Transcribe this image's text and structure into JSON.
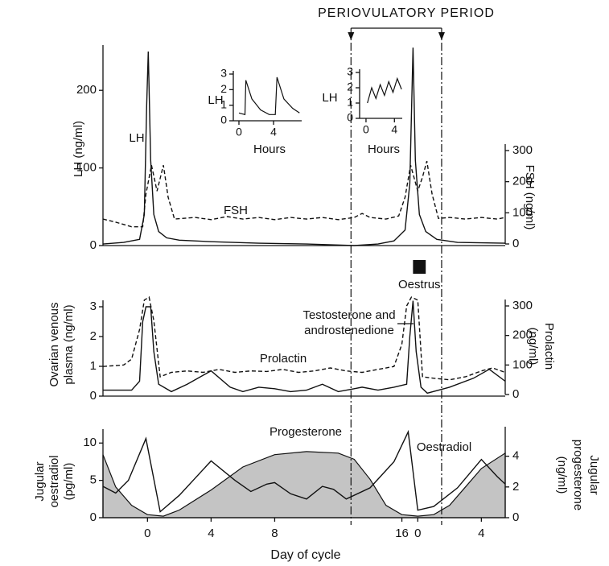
{
  "periovulatory": {
    "label": "PERIOVULATORY PERIOD",
    "range": [
      12.8,
      18.5
    ]
  },
  "chart_data": [
    {
      "type": "line",
      "ylabel": "LH (ng/ml)",
      "y2label": "FSH (ng/ml)",
      "xlim": [
        -2.8,
        22.5
      ],
      "ylim": [
        0,
        250
      ],
      "yticks": [
        0,
        100,
        200
      ],
      "y2lim": [
        0,
        300
      ],
      "y2ticks": [
        0,
        100,
        200,
        300
      ],
      "series": [
        {
          "name": "LH",
          "color": "#111111",
          "x": [
            -2.8,
            -1.5,
            -0.5,
            -0.2,
            -0.05,
            0.05,
            0.2,
            0.4,
            0.7,
            1.2,
            2,
            4,
            7,
            10,
            13,
            14.5,
            15.5,
            16.2,
            16.5,
            16.7,
            16.85,
            17.1,
            17.5,
            18.2,
            19.5,
            22.5
          ],
          "values": [
            2,
            4,
            8,
            40,
            180,
            250,
            110,
            40,
            18,
            10,
            7,
            5,
            3,
            2,
            0,
            2,
            6,
            20,
            80,
            255,
            110,
            40,
            18,
            8,
            4,
            3
          ]
        },
        {
          "name": "FSH",
          "color": "#111111",
          "dash": true,
          "axis": "y2",
          "x": [
            -2.8,
            -2,
            -1,
            -0.3,
            -0.1,
            0.25,
            0.6,
            1.0,
            1.3,
            1.7,
            3,
            4,
            5,
            6,
            7,
            8,
            9,
            10,
            11,
            12,
            13,
            13.5,
            14,
            15,
            15.8,
            16.2,
            16.55,
            17,
            17.3,
            17.57,
            17.9,
            18.3,
            19,
            20,
            21,
            22,
            22.5
          ],
          "values": [
            80,
            70,
            55,
            55,
            160,
            253,
            170,
            253,
            150,
            80,
            85,
            78,
            88,
            80,
            85,
            78,
            85,
            80,
            85,
            78,
            85,
            98,
            85,
            80,
            90,
            150,
            253,
            170,
            215,
            266,
            160,
            82,
            85,
            80,
            85,
            80,
            85
          ]
        }
      ]
    },
    {
      "type": "line",
      "ylabel": [
        "Ovarian venous",
        "plasma (ng/ml)"
      ],
      "y2label": [
        "Prolactin",
        "(ng/ml)"
      ],
      "xlim": [
        -2.8,
        22.5
      ],
      "ylim": [
        0,
        3
      ],
      "yticks": [
        0,
        1,
        2,
        3
      ],
      "y2lim": [
        0,
        300
      ],
      "y2ticks": [
        0,
        100,
        200,
        300
      ],
      "oestrus": {
        "label": "Oestrus",
        "range": [
          16.7,
          17.5
        ]
      },
      "series": [
        {
          "label_lines": [
            "Testosterone and",
            "androstenedione"
          ],
          "color": "#111111",
          "x": [
            -2.8,
            -1,
            -0.5,
            -0.3,
            -0.1,
            0.2,
            0.4,
            0.7,
            1.5,
            2.5,
            4,
            5.2,
            6,
            7,
            8,
            9,
            10,
            11,
            12,
            13,
            13.5,
            14.5,
            15.5,
            16.3,
            16.5,
            16.7,
            16.9,
            17.2,
            17.6,
            19,
            20.5,
            21.5,
            22.5
          ],
          "values": [
            0.2,
            0.2,
            0.5,
            2.5,
            3,
            3,
            1.5,
            0.4,
            0.15,
            0.4,
            0.85,
            0.3,
            0.15,
            0.3,
            0.25,
            0.15,
            0.2,
            0.4,
            0.15,
            0.25,
            0.3,
            0.2,
            0.3,
            0.4,
            2,
            3.2,
            1.5,
            0.3,
            0.1,
            0.3,
            0.6,
            0.9,
            0.5
          ]
        },
        {
          "name": "Prolactin",
          "color": "#111111",
          "dash": true,
          "axis": "y2",
          "x": [
            -2.8,
            -1.5,
            -1,
            -0.5,
            -0.2,
            0.1,
            0.4,
            0.8,
            1.5,
            2.5,
            3.5,
            4.5,
            5.5,
            6.5,
            7.5,
            8.5,
            9.5,
            10.5,
            11.5,
            12.5,
            13.5,
            14.5,
            15.5,
            16,
            16.3,
            16.6,
            17,
            17.3,
            18,
            19,
            20,
            21,
            21.7,
            22.5
          ],
          "values": [
            95,
            100,
            120,
            220,
            320,
            330,
            250,
            60,
            75,
            80,
            75,
            85,
            75,
            80,
            78,
            85,
            75,
            80,
            90,
            80,
            75,
            85,
            95,
            170,
            300,
            330,
            320,
            60,
            55,
            50,
            60,
            80,
            90,
            75
          ]
        }
      ]
    },
    {
      "type": "line",
      "ylabel": [
        "Jugular",
        "oestradiol",
        "(pg/ml)"
      ],
      "y2label": [
        "Jugular",
        "progesterone",
        "(ng/ml)"
      ],
      "xlabel": "Day of cycle",
      "xlim": [
        -2.8,
        22.5
      ],
      "xticks": [
        0,
        4,
        8,
        16,
        {
          "value": 17,
          "label": "0"
        },
        {
          "value": 21,
          "label": "4"
        }
      ],
      "ylim": [
        0,
        11
      ],
      "yticks": [
        0,
        5,
        10
      ],
      "y2lim": [
        0,
        5.5
      ],
      "y2ticks": [
        0,
        2,
        4
      ],
      "series": [
        {
          "name": "Progesterone",
          "color": "#c4c4c4",
          "fill": true,
          "axis": "y2",
          "x": [
            -2.8,
            -2,
            -1,
            0,
            1,
            2,
            4,
            6,
            8,
            10,
            12,
            13,
            14,
            15,
            16,
            17,
            18,
            19,
            20,
            21,
            22.5
          ],
          "values": [
            4.1,
            2,
            0.8,
            0.2,
            0.1,
            0.5,
            1.8,
            3.3,
            4.1,
            4.3,
            4.2,
            3.8,
            2.5,
            0.8,
            0.2,
            0.1,
            0.2,
            0.8,
            2,
            3.2,
            4.2
          ]
        },
        {
          "name": "Oestradiol",
          "color": "#111111",
          "x": [
            -2.8,
            -2,
            -1.2,
            -0.1,
            0.8,
            2,
            4,
            5.5,
            6.5,
            7.5,
            8,
            9,
            10,
            11,
            11.7,
            12.5,
            14,
            15.5,
            16.4,
            17,
            18,
            19.5,
            21,
            22,
            22.5
          ],
          "values": [
            4.2,
            3.3,
            5,
            10.6,
            0.8,
            3,
            7.6,
            5,
            3.5,
            4.5,
            4.7,
            3.2,
            2.5,
            4.2,
            3.8,
            2.5,
            4,
            7.5,
            11.5,
            1,
            1.5,
            4,
            7.8,
            5.5,
            4.5
          ]
        }
      ]
    },
    {
      "type": "line",
      "ylabel": "LH",
      "xlabel": "Hours",
      "xlim": [
        -0.65,
        7.25
      ],
      "xticks": [
        0,
        4
      ],
      "ylim": [
        0,
        3
      ],
      "yticks": [
        0,
        1,
        2,
        3
      ],
      "series": [
        {
          "color": "#111111",
          "x": [
            0,
            0.7,
            0.8,
            1.5,
            2.5,
            3.5,
            4.2,
            4.4,
            5.2,
            6.2,
            7
          ],
          "values": [
            0.5,
            0.4,
            2.6,
            1.4,
            0.7,
            0.4,
            0.4,
            2.8,
            1.4,
            0.8,
            0.5
          ]
        }
      ]
    },
    {
      "type": "line",
      "ylabel": "LH",
      "xlabel": "Hours",
      "xlim": [
        -0.9,
        5.1
      ],
      "xticks": [
        0,
        4
      ],
      "ylim": [
        0,
        3
      ],
      "yticks": [
        0,
        1,
        2,
        3
      ],
      "series": [
        {
          "color": "#111111",
          "x": [
            0.2,
            0.8,
            1.4,
            2.0,
            2.6,
            3.2,
            3.8,
            4.4,
            5.0
          ],
          "values": [
            1,
            2,
            1.3,
            2.2,
            1.5,
            2.4,
            1.7,
            2.6,
            1.9
          ]
        }
      ]
    }
  ]
}
